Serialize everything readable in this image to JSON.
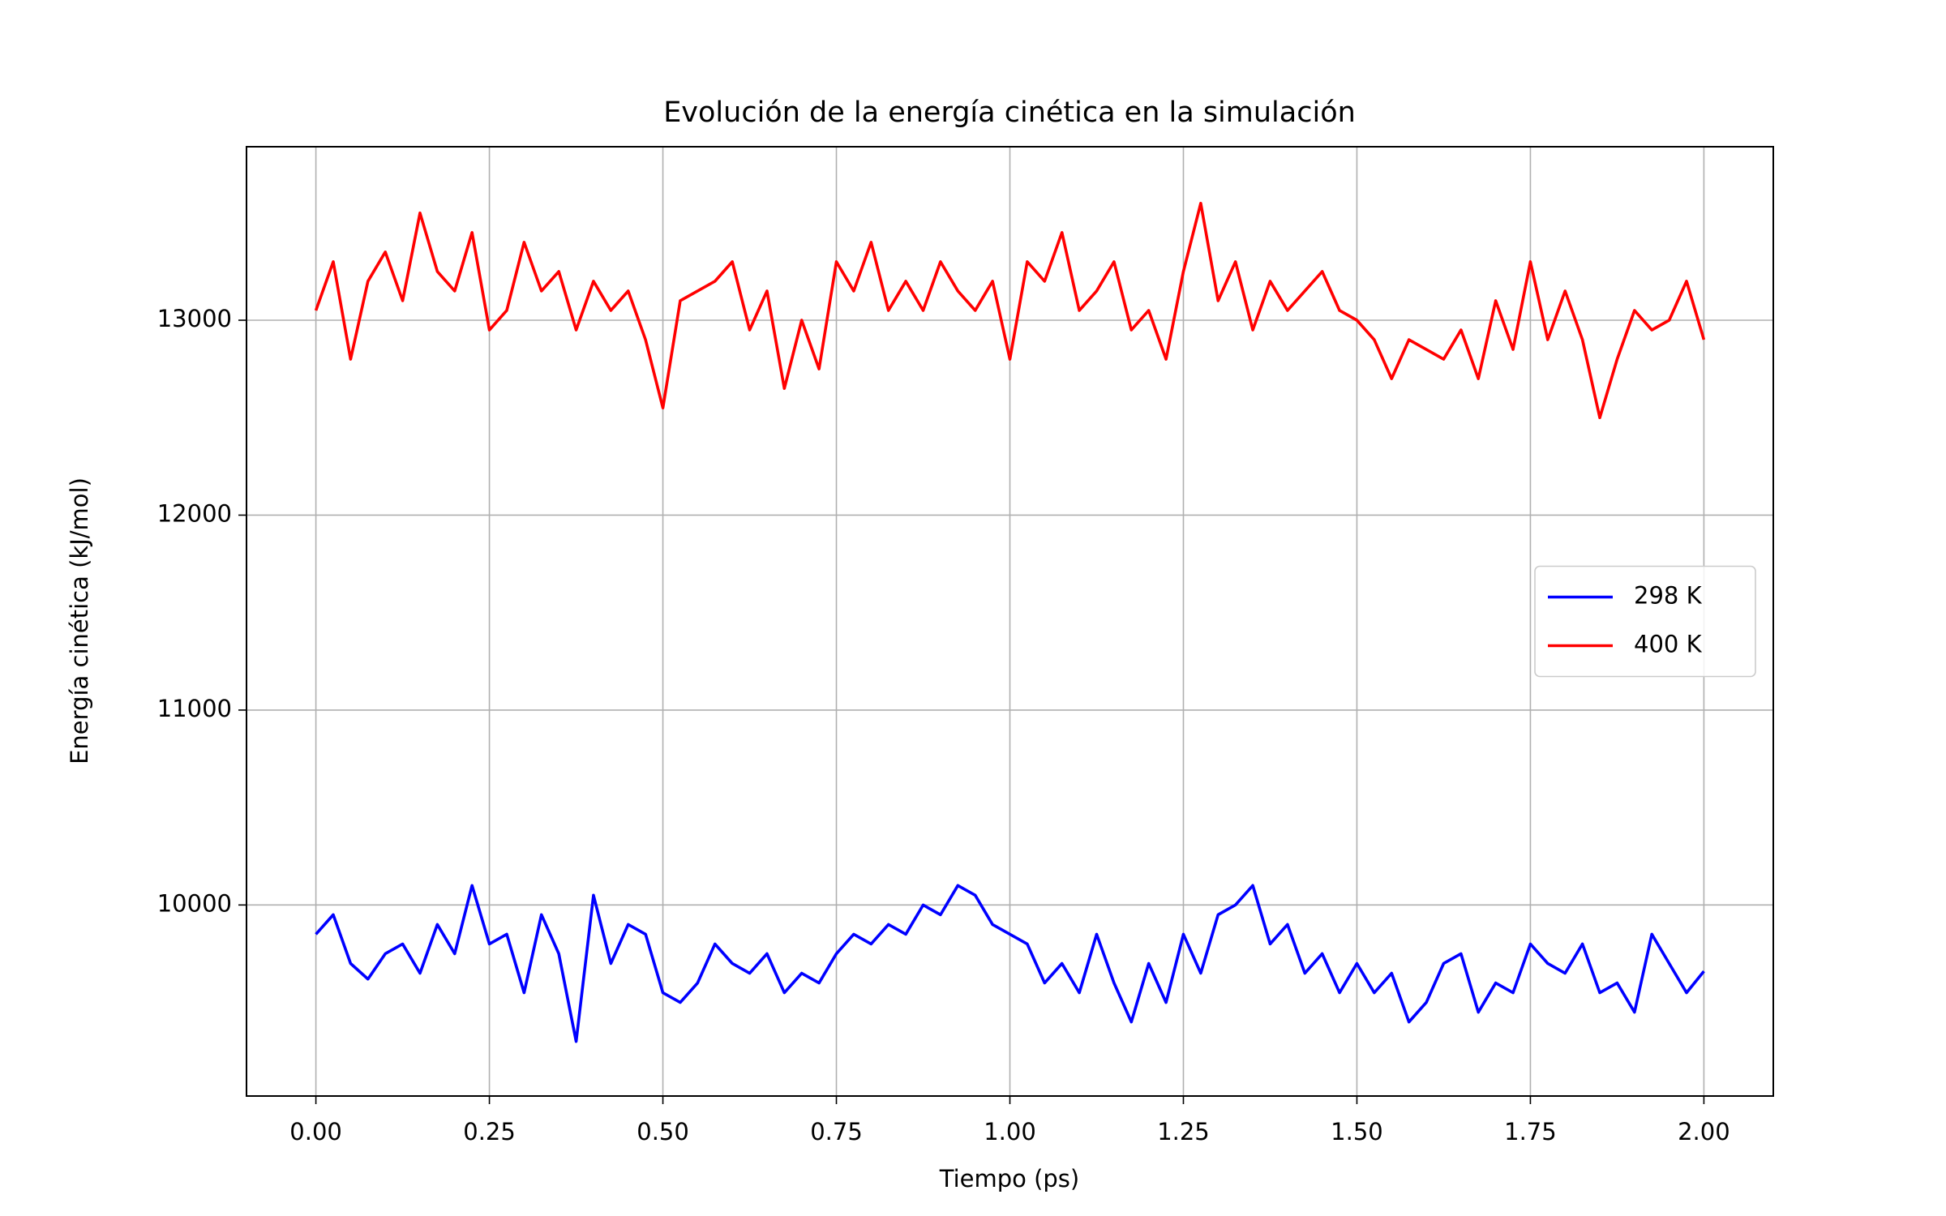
{
  "chart_data": {
    "type": "line",
    "title": "Evolución de la energía cinética en la simulación",
    "x_label": "Tiempo (ps)",
    "y_label": "Energía cinética (kJ/mol)",
    "x": [
      0,
      0.025,
      0.05,
      0.075,
      0.1,
      0.125,
      0.15,
      0.175,
      0.2,
      0.225,
      0.25,
      0.275,
      0.3,
      0.325,
      0.35,
      0.375,
      0.4,
      0.425,
      0.45,
      0.475,
      0.5,
      0.525,
      0.55,
      0.575,
      0.6,
      0.625,
      0.65,
      0.675,
      0.7,
      0.725,
      0.75,
      0.775,
      0.8,
      0.825,
      0.85,
      0.875,
      0.9,
      0.925,
      0.95,
      0.975,
      1.0,
      1.025,
      1.05,
      1.075,
      1.1,
      1.125,
      1.15,
      1.175,
      1.2,
      1.225,
      1.25,
      1.275,
      1.3,
      1.325,
      1.35,
      1.375,
      1.4,
      1.425,
      1.45,
      1.475,
      1.5,
      1.525,
      1.55,
      1.575,
      1.6,
      1.625,
      1.65,
      1.675,
      1.7,
      1.725,
      1.75,
      1.775,
      1.8,
      1.825,
      1.85,
      1.875,
      1.9,
      1.925,
      1.95,
      1.975,
      2.0
    ],
    "series": [
      {
        "name": "298 K",
        "color": "#0000ff",
        "values": [
          9850,
          9950,
          9700,
          9620,
          9750,
          9800,
          9650,
          9900,
          9750,
          10100,
          9800,
          9850,
          9550,
          9950,
          9750,
          9300,
          10050,
          9700,
          9900,
          9850,
          9550,
          9500,
          9600,
          9800,
          9700,
          9650,
          9750,
          9550,
          9650,
          9600,
          9750,
          9850,
          9800,
          9900,
          9850,
          10000,
          9950,
          10100,
          10050,
          9900,
          9850,
          9800,
          9600,
          9700,
          9550,
          9850,
          9600,
          9400,
          9700,
          9500,
          9850,
          9650,
          9950,
          10000,
          10100,
          9800,
          9900,
          9650,
          9750,
          9550,
          9700,
          9550,
          9650,
          9400,
          9500,
          9700,
          9750,
          9450,
          9600,
          9550,
          9800,
          9700,
          9650,
          9800,
          9550,
          9600,
          9450,
          9850,
          9700,
          9550,
          9660
        ]
      },
      {
        "name": "400 K",
        "color": "#ff0000",
        "values": [
          13050,
          13300,
          12800,
          13200,
          13350,
          13100,
          13550,
          13250,
          13150,
          13450,
          12950,
          13050,
          13400,
          13150,
          13250,
          12950,
          13200,
          13050,
          13150,
          12900,
          12550,
          13100,
          13150,
          13200,
          13300,
          12950,
          13150,
          12650,
          13000,
          12750,
          13300,
          13150,
          13400,
          13050,
          13200,
          13050,
          13300,
          13150,
          13050,
          13200,
          12800,
          13300,
          13200,
          13450,
          13050,
          13150,
          13300,
          12950,
          13050,
          12800,
          13250,
          13600,
          13100,
          13300,
          12950,
          13200,
          13050,
          13150,
          13250,
          13050,
          13000,
          12900,
          12700,
          12900,
          12850,
          12800,
          12950,
          12700,
          13100,
          12850,
          13300,
          12900,
          13150,
          12900,
          12500,
          12800,
          13050,
          12950,
          13000,
          13200,
          12900
        ]
      }
    ],
    "xlim": [
      -0.1,
      2.1
    ],
    "ylim": [
      9020,
      13890
    ],
    "xticks": [
      {
        "value": 0,
        "label": "0.00"
      },
      {
        "value": 0.25,
        "label": "0.25"
      },
      {
        "value": 0.5,
        "label": "0.50"
      },
      {
        "value": 0.75,
        "label": "0.75"
      },
      {
        "value": 1,
        "label": "1.00"
      },
      {
        "value": 1.25,
        "label": "1.25"
      },
      {
        "value": 1.5,
        "label": "1.50"
      },
      {
        "value": 1.75,
        "label": "1.75"
      },
      {
        "value": 2,
        "label": "2.00"
      }
    ],
    "yticks": [
      10000,
      11000,
      12000,
      13000
    ],
    "grid": true,
    "legend": "center right"
  }
}
